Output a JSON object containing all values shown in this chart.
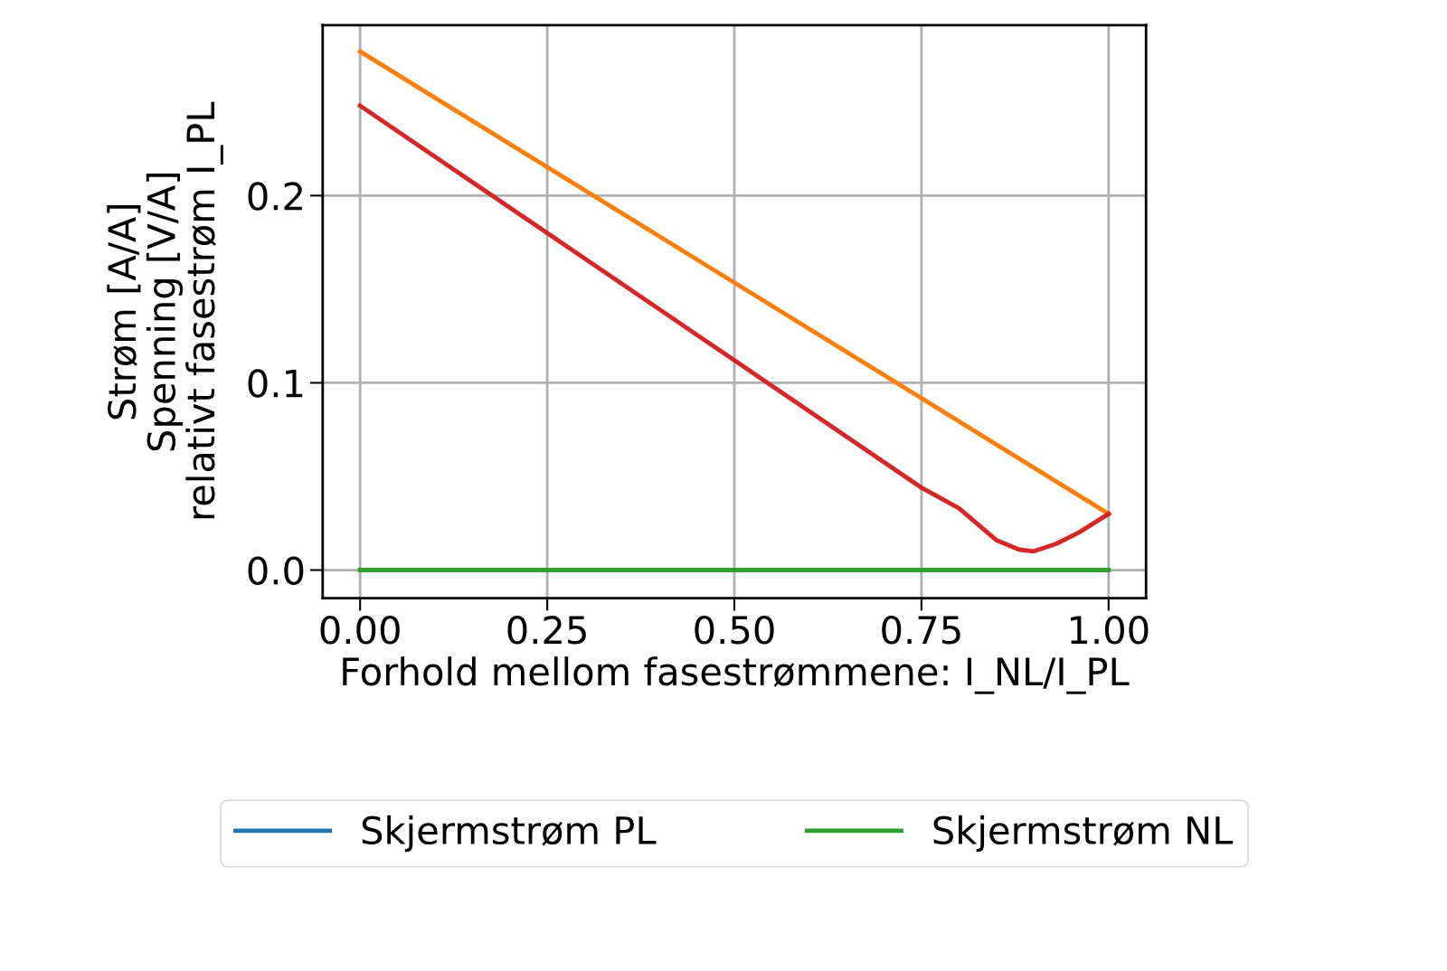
{
  "chart_data": {
    "type": "line",
    "xlabel": "Forhold mellom fasestrømmene: I_NL/I_PL",
    "ylabel": "Strøm [A/A]\nSpenning [V/A]\nrelativt fasestrøm I_PL",
    "xlim": [
      -0.05,
      1.05
    ],
    "ylim": [
      -0.015,
      0.291
    ],
    "xticks": [
      {
        "value": 0,
        "label": "0.00"
      },
      {
        "value": 0.25,
        "label": "0.25"
      },
      {
        "value": 0.5,
        "label": "0.50"
      },
      {
        "value": 0.75,
        "label": "0.75"
      },
      {
        "value": 1,
        "label": "1.00"
      }
    ],
    "yticks": [
      {
        "value": 0,
        "label": "0.0"
      },
      {
        "value": 0.1,
        "label": "0.1"
      },
      {
        "value": 0.2,
        "label": "0.2"
      }
    ],
    "grid": true,
    "legend": "bottom",
    "series": [
      {
        "name": "Skjermstrøm PL",
        "color": "#1f77b4"
      },
      {
        "color": "#ff7f0e",
        "x": [
          0,
          1
        ],
        "values": [
          0.277,
          0.03
        ]
      },
      {
        "name": "Skjermstrøm NL",
        "color": "#2ca02c",
        "x": [
          0,
          1
        ],
        "values": [
          0,
          0
        ]
      },
      {
        "color": "#d62728",
        "x": [
          0,
          0.25,
          0.5,
          0.75,
          0.8,
          0.85,
          0.88,
          0.9,
          0.93,
          0.96,
          1.0
        ],
        "values": [
          0.248,
          0.18,
          0.112,
          0.044,
          0.033,
          0.016,
          0.011,
          0.01,
          0.014,
          0.02,
          0.03
        ]
      }
    ]
  }
}
